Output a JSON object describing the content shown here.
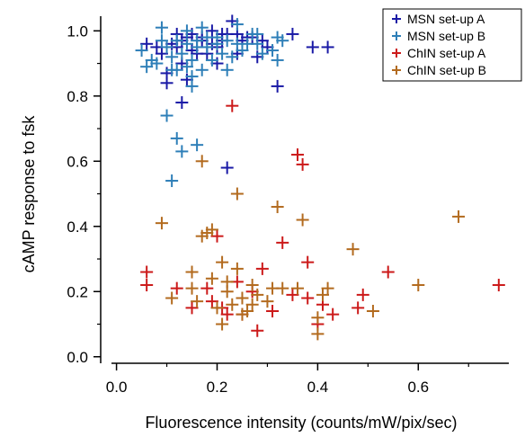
{
  "chart_data": {
    "type": "scatter",
    "title": "",
    "xlabel": "Fluorescence intensity (counts/mW/pix/sec)",
    "ylabel": "cAMP response to fsk",
    "xlim": [
      -0.01,
      0.78
    ],
    "ylim": [
      -0.02,
      1.045
    ],
    "xticks": [
      0.0,
      0.2,
      0.4,
      0.6
    ],
    "xtick_labels": [
      "0.0",
      "0.2",
      "0.4",
      "0.6"
    ],
    "yticks": [
      0.0,
      0.2,
      0.4,
      0.6,
      0.8,
      1.0
    ],
    "ytick_labels": [
      "0.0",
      "0.2",
      "0.4",
      "0.6",
      "0.8",
      "1.0"
    ],
    "grid": false,
    "legend_position": "top-right",
    "marker": "plus",
    "series": [
      {
        "name": "MSN set-up A",
        "color": "#1a1aa6",
        "points": [
          [
            0.06,
            0.96
          ],
          [
            0.08,
            0.95
          ],
          [
            0.09,
            0.93
          ],
          [
            0.1,
            0.84
          ],
          [
            0.11,
            0.96
          ],
          [
            0.12,
            0.99
          ],
          [
            0.13,
            0.97
          ],
          [
            0.13,
            0.9
          ],
          [
            0.14,
            0.85
          ],
          [
            0.15,
            0.94
          ],
          [
            0.15,
            0.99
          ],
          [
            0.16,
            0.93
          ],
          [
            0.17,
            0.97
          ],
          [
            0.18,
            0.93
          ],
          [
            0.19,
            0.96
          ],
          [
            0.19,
            1.0
          ],
          [
            0.2,
            0.95
          ],
          [
            0.2,
            0.9
          ],
          [
            0.21,
            0.99
          ],
          [
            0.21,
            0.97
          ],
          [
            0.22,
            0.99
          ],
          [
            0.23,
            1.03
          ],
          [
            0.24,
            0.93
          ],
          [
            0.25,
            0.97
          ],
          [
            0.26,
            0.98
          ],
          [
            0.27,
            0.98
          ],
          [
            0.28,
            0.92
          ],
          [
            0.29,
            0.97
          ],
          [
            0.3,
            0.95
          ],
          [
            0.32,
            0.83
          ],
          [
            0.35,
            0.99
          ],
          [
            0.39,
            0.95
          ],
          [
            0.42,
            0.95
          ],
          [
            0.22,
            0.58
          ],
          [
            0.13,
            0.78
          ],
          [
            0.1,
            0.87
          ],
          [
            0.12,
            0.95
          ],
          [
            0.17,
            0.98
          ],
          [
            0.24,
            0.99
          ],
          [
            0.14,
            0.98
          ]
        ]
      },
      {
        "name": "MSN set-up B",
        "color": "#2e7fb8",
        "points": [
          [
            0.05,
            0.94
          ],
          [
            0.06,
            0.89
          ],
          [
            0.07,
            0.91
          ],
          [
            0.08,
            0.9
          ],
          [
            0.09,
            0.97
          ],
          [
            0.09,
            1.01
          ],
          [
            0.1,
            0.95
          ],
          [
            0.11,
            0.92
          ],
          [
            0.12,
            0.88
          ],
          [
            0.12,
            0.97
          ],
          [
            0.13,
            0.93
          ],
          [
            0.14,
            0.96
          ],
          [
            0.14,
            1.0
          ],
          [
            0.15,
            0.83
          ],
          [
            0.15,
            0.91
          ],
          [
            0.16,
            0.95
          ],
          [
            0.16,
            0.97
          ],
          [
            0.17,
            1.01
          ],
          [
            0.17,
            0.88
          ],
          [
            0.18,
            0.95
          ],
          [
            0.19,
            0.91
          ],
          [
            0.2,
            0.96
          ],
          [
            0.21,
            0.93
          ],
          [
            0.22,
            0.97
          ],
          [
            0.22,
            0.88
          ],
          [
            0.23,
            0.92
          ],
          [
            0.24,
            0.96
          ],
          [
            0.25,
            0.94
          ],
          [
            0.26,
            0.96
          ],
          [
            0.27,
            0.99
          ],
          [
            0.28,
            0.96
          ],
          [
            0.29,
            0.93
          ],
          [
            0.31,
            0.94
          ],
          [
            0.32,
            0.91
          ],
          [
            0.33,
            0.97
          ],
          [
            0.12,
            0.67
          ],
          [
            0.13,
            0.63
          ],
          [
            0.16,
            0.65
          ],
          [
            0.1,
            0.74
          ],
          [
            0.11,
            0.54
          ],
          [
            0.15,
            0.86
          ],
          [
            0.14,
            0.89
          ],
          [
            0.18,
            0.98
          ],
          [
            0.11,
            0.88
          ],
          [
            0.32,
            0.98
          ],
          [
            0.28,
            0.99
          ],
          [
            0.24,
            1.02
          ],
          [
            0.2,
            0.98
          ]
        ]
      },
      {
        "name": "ChIN set-up A",
        "color": "#cc1a1a",
        "points": [
          [
            0.06,
            0.26
          ],
          [
            0.06,
            0.22
          ],
          [
            0.12,
            0.21
          ],
          [
            0.15,
            0.15
          ],
          [
            0.18,
            0.21
          ],
          [
            0.19,
            0.17
          ],
          [
            0.2,
            0.37
          ],
          [
            0.21,
            0.15
          ],
          [
            0.22,
            0.13
          ],
          [
            0.23,
            0.77
          ],
          [
            0.25,
            0.13
          ],
          [
            0.27,
            0.2
          ],
          [
            0.28,
            0.08
          ],
          [
            0.29,
            0.27
          ],
          [
            0.33,
            0.35
          ],
          [
            0.35,
            0.19
          ],
          [
            0.36,
            0.62
          ],
          [
            0.37,
            0.59
          ],
          [
            0.38,
            0.29
          ],
          [
            0.38,
            0.18
          ],
          [
            0.4,
            0.1
          ],
          [
            0.41,
            0.16
          ],
          [
            0.43,
            0.13
          ],
          [
            0.48,
            0.15
          ],
          [
            0.49,
            0.19
          ],
          [
            0.54,
            0.26
          ],
          [
            0.76,
            0.22
          ],
          [
            0.31,
            0.14
          ],
          [
            0.24,
            0.23
          ]
        ]
      },
      {
        "name": "ChIN set-up B",
        "color": "#b36b1f",
        "points": [
          [
            0.09,
            0.41
          ],
          [
            0.11,
            0.18
          ],
          [
            0.15,
            0.26
          ],
          [
            0.15,
            0.21
          ],
          [
            0.16,
            0.17
          ],
          [
            0.17,
            0.37
          ],
          [
            0.17,
            0.6
          ],
          [
            0.18,
            0.38
          ],
          [
            0.19,
            0.39
          ],
          [
            0.19,
            0.24
          ],
          [
            0.2,
            0.15
          ],
          [
            0.21,
            0.1
          ],
          [
            0.21,
            0.29
          ],
          [
            0.22,
            0.2
          ],
          [
            0.22,
            0.23
          ],
          [
            0.23,
            0.16
          ],
          [
            0.24,
            0.5
          ],
          [
            0.25,
            0.13
          ],
          [
            0.25,
            0.18
          ],
          [
            0.26,
            0.14
          ],
          [
            0.27,
            0.22
          ],
          [
            0.27,
            0.16
          ],
          [
            0.28,
            0.19
          ],
          [
            0.31,
            0.21
          ],
          [
            0.32,
            0.46
          ],
          [
            0.33,
            0.21
          ],
          [
            0.36,
            0.21
          ],
          [
            0.37,
            0.42
          ],
          [
            0.4,
            0.12
          ],
          [
            0.4,
            0.07
          ],
          [
            0.41,
            0.19
          ],
          [
            0.42,
            0.21
          ],
          [
            0.47,
            0.33
          ],
          [
            0.51,
            0.14
          ],
          [
            0.6,
            0.22
          ],
          [
            0.68,
            0.43
          ],
          [
            0.24,
            0.27
          ],
          [
            0.3,
            0.17
          ]
        ]
      }
    ]
  }
}
